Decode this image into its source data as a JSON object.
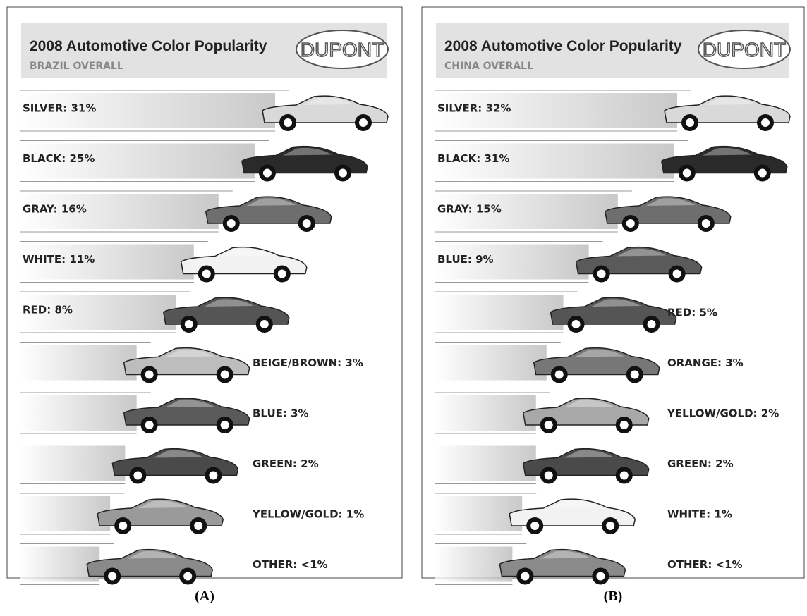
{
  "chart_data": [
    {
      "type": "bar",
      "caption": "(A)",
      "title": "2008 Automotive Color Popularity",
      "subtitle": "BRAZIL OVERALL",
      "logo": "DUPONT",
      "categories": [
        "SILVER: 31%",
        "BLACK: 25%",
        "GRAY: 16%",
        "WHITE: 11%",
        "RED: 8%",
        "BEIGE/BROWN: 3%",
        "BLUE: 3%",
        "GREEN: 2%",
        "YELLOW/GOLD: 1%",
        "OTHER: <1%"
      ],
      "values": [
        31,
        25,
        16,
        11,
        8,
        3,
        3,
        2,
        1,
        0.5
      ],
      "colors": [
        "#d9d9d9",
        "#2a2a2a",
        "#6e6e6e",
        "#f2f2f2",
        "#555555",
        "#bdbdbd",
        "#5a5a5a",
        "#4a4a4a",
        "#9a9a9a",
        "#8a8a8a"
      ]
    },
    {
      "type": "bar",
      "caption": "(B)",
      "title": "2008 Automotive Color Popularity",
      "subtitle": "CHINA OVERALL",
      "logo": "DUPONT",
      "categories": [
        "SILVER: 32%",
        "BLACK: 31%",
        "GRAY: 15%",
        "BLUE: 9%",
        "RED: 5%",
        "ORANGE: 3%",
        "YELLOW/GOLD: 2%",
        "GREEN: 2%",
        "WHITE: 1%",
        "OTHER: <1%"
      ],
      "values": [
        32,
        31,
        15,
        9,
        5,
        3,
        2,
        2,
        1,
        0.5
      ],
      "colors": [
        "#d9d9d9",
        "#2a2a2a",
        "#6e6e6e",
        "#5a5a5a",
        "#555555",
        "#777777",
        "#a8a8a8",
        "#4a4a4a",
        "#f2f2f2",
        "#8a8a8a"
      ]
    }
  ]
}
